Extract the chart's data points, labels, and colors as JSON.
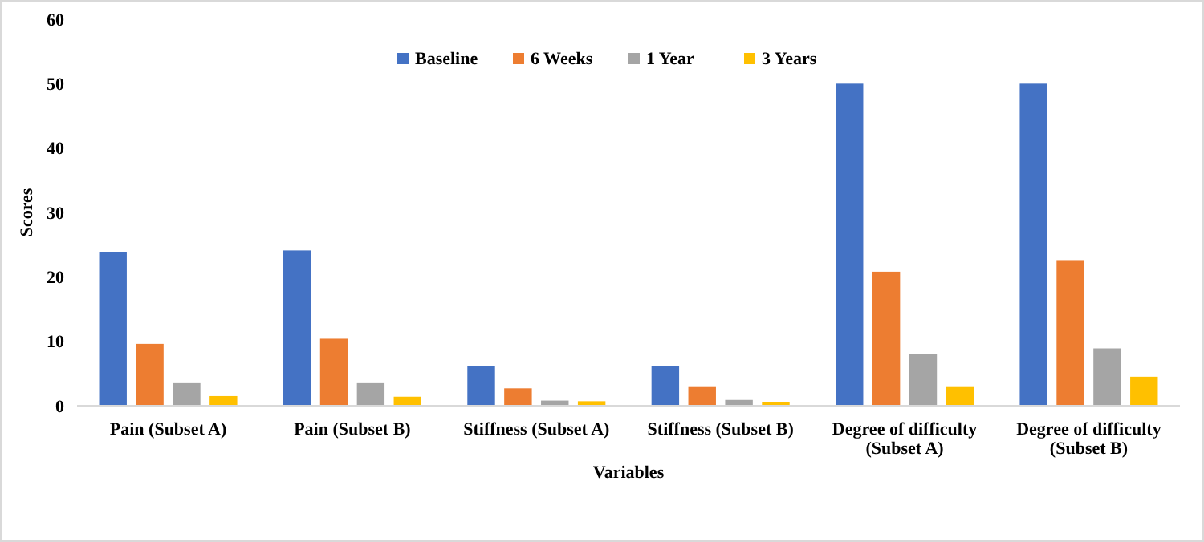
{
  "chart_data": {
    "type": "bar",
    "xlabel": "Variables",
    "ylabel": "Scores",
    "categories": [
      "Pain (Subset A)",
      "Pain (Subset B)",
      "Stiffness (Subset A)",
      "Stiffness (Subset B)",
      "Degree of difficulty (Subset A)",
      "Degree of difficulty (Subset B)"
    ],
    "series": [
      {
        "name": "Baseline",
        "color": "#4472c4",
        "values": [
          23.9,
          24.1,
          6.1,
          6.1,
          50,
          50
        ]
      },
      {
        "name": "6 Weeks",
        "color": "#ed7d31",
        "values": [
          9.6,
          10.4,
          2.7,
          2.9,
          20.8,
          22.6
        ]
      },
      {
        "name": "1 Year",
        "color": "#a5a5a5",
        "values": [
          3.5,
          3.5,
          0.8,
          0.9,
          8.0,
          8.9
        ]
      },
      {
        "name": "3 Years",
        "color": "#ffc000",
        "values": [
          1.5,
          1.4,
          0.7,
          0.6,
          2.9,
          4.5
        ]
      }
    ],
    "ylim": [
      0,
      60
    ],
    "yticks": [
      0,
      10,
      20,
      30,
      40,
      50,
      60
    ],
    "grid": false,
    "legend": "top"
  }
}
